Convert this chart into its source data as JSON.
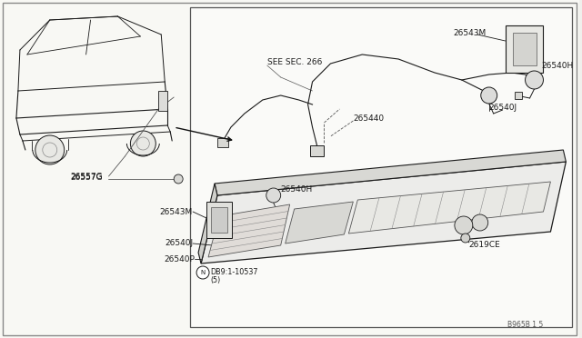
{
  "bg_color": "#f0f0ec",
  "line_color": "#1a1a1a",
  "light_line": "#555555",
  "white": "#ffffff",
  "gray_light": "#e8e8e4",
  "gray_mid": "#cccccc",
  "figure_num": "B965B 1 5",
  "labels": {
    "see_sec": "SEE SEC. 266",
    "26543M_top": "26543M",
    "26540H_top": "26540H",
    "26540J_top": "26540J",
    "265440": "265440",
    "26540H_mid": "26540H",
    "26543M_mid": "26543M",
    "26540J_mid": "26540J",
    "26540P": "26540P",
    "26557G": "26557G",
    "26190E": "2619CE",
    "drn": "DB9:1-10537",
    "drn2": "(5)"
  }
}
